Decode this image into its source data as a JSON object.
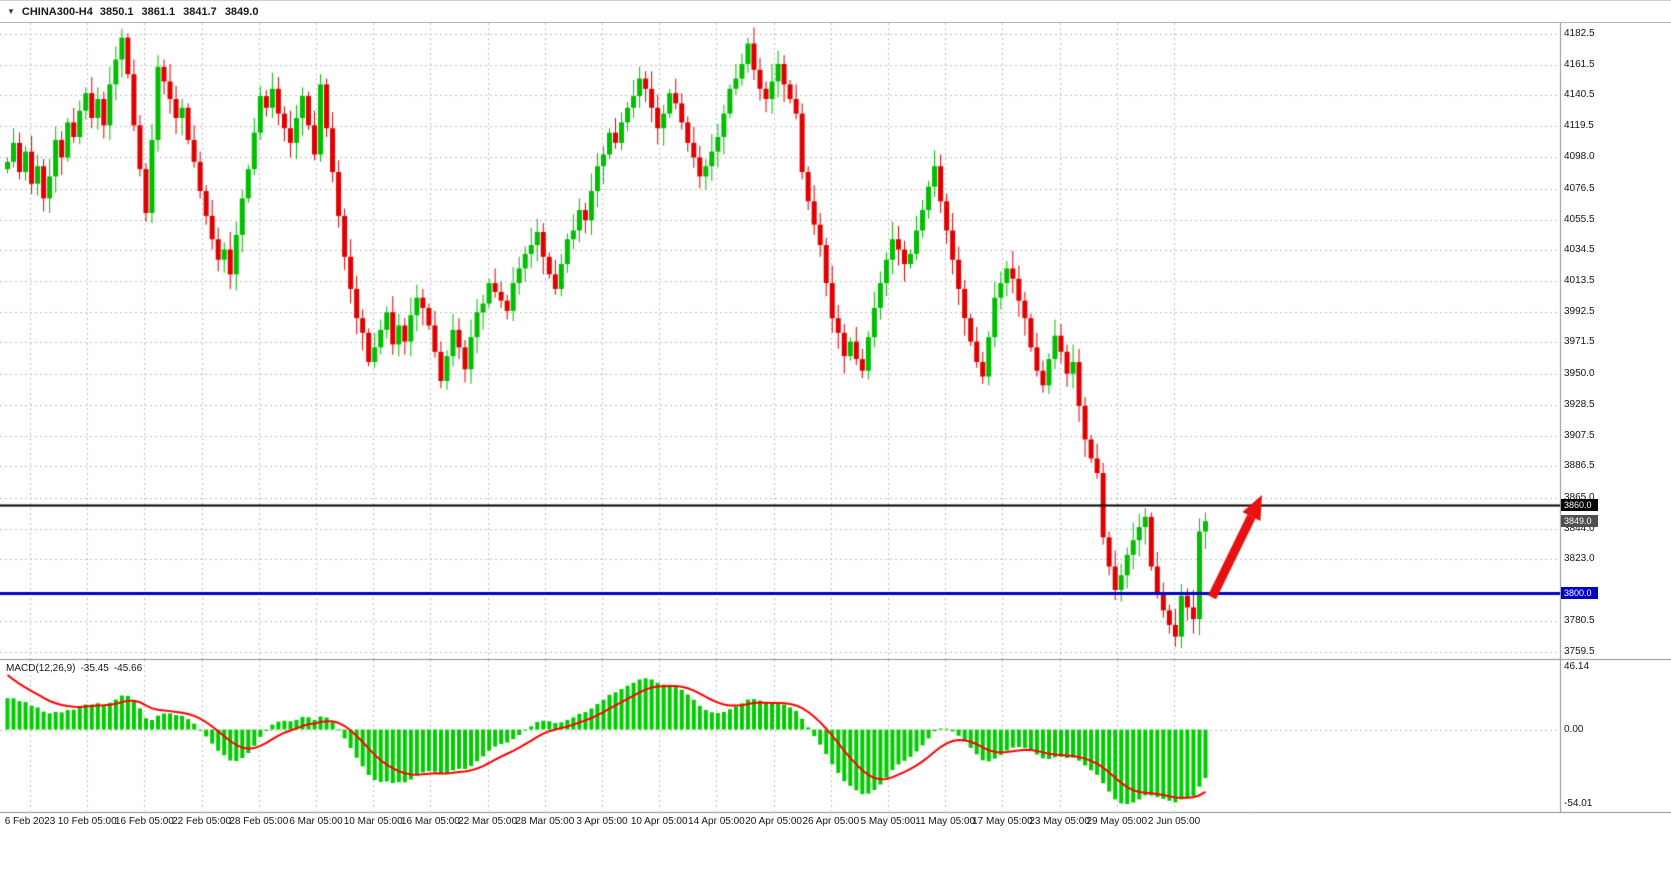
{
  "quote_bar": {
    "collapse_icon_glyph": "▼",
    "symbol": "CHINA300-H4",
    "open": "3850.1",
    "high": "3861.1",
    "low": "3841.7",
    "close": "3849.0"
  },
  "chart_data": {
    "type": "candlestick",
    "symbol": "CHINA300",
    "timeframe": "H4",
    "grid": true,
    "background": "#ffffff",
    "up_color": "#00BE00",
    "down_color": "#E00000",
    "price_top_tick": 4182.5,
    "price_bottom_tick": 3759.5,
    "price_axis_ticks": [
      "4182.5",
      "4161.5",
      "4140.5",
      "4119.5",
      "4098.0",
      "4076.5",
      "4055.5",
      "4034.5",
      "4013.5",
      "3992.5",
      "3971.5",
      "3950.0",
      "3928.5",
      "3907.5",
      "3886.5",
      "3865.0",
      "3844.0",
      "3823.0",
      "3780.5",
      "3759.5"
    ],
    "x_labels": [
      "6 Feb 2023",
      "10 Feb 05:00",
      "16 Feb 05:00",
      "22 Feb 05:00",
      "28 Feb 05:00",
      "6 Mar 05:00",
      "10 Mar 05:00",
      "16 Mar 05:00",
      "22 Mar 05:00",
      "28 Mar 05:00",
      "3 Apr 05:00",
      "10 Apr 05:00",
      "14 Apr 05:00",
      "20 Apr 05:00",
      "26 Apr 05:00",
      "5 May 05:00",
      "11 May 05:00",
      "17 May 05:00",
      "23 May 05:00",
      "29 May 05:00",
      "2 Jun 05:00"
    ],
    "first_open": 4090,
    "closes": [
      4095,
      4108,
      4088,
      4102,
      4080,
      4092,
      4070,
      4085,
      4110,
      4098,
      4122,
      4112,
      4130,
      4142,
      4125,
      4138,
      4120,
      4148,
      4165,
      4180,
      4155,
      4120,
      4090,
      4060,
      4110,
      4160,
      4150,
      4138,
      4125,
      4132,
      4110,
      4095,
      4075,
      4058,
      4042,
      4028,
      4035,
      4018,
      4045,
      4070,
      4090,
      4115,
      4140,
      4132,
      4145,
      4128,
      4118,
      4108,
      4125,
      4140,
      4120,
      4100,
      4148,
      4118,
      4088,
      4058,
      4030,
      4008,
      3988,
      3978,
      3958,
      3968,
      3980,
      3992,
      3970,
      3983,
      3972,
      3990,
      4002,
      3995,
      3983,
      3965,
      3945,
      3962,
      3980,
      3968,
      3953,
      3975,
      3992,
      3998,
      4012,
      4006,
      4000,
      3993,
      4012,
      4022,
      4032,
      4038,
      4047,
      4030,
      4018,
      4008,
      4025,
      4042,
      4048,
      4062,
      4055,
      4075,
      4092,
      4100,
      4115,
      4108,
      4122,
      4132,
      4140,
      4152,
      4145,
      4132,
      4118,
      4128,
      4142,
      4135,
      4122,
      4108,
      4098,
      4085,
      4092,
      4102,
      4112,
      4128,
      4145,
      4152,
      4162,
      4176,
      4158,
      4145,
      4138,
      4150,
      4162,
      4148,
      4138,
      4128,
      4088,
      4068,
      4052,
      4038,
      4012,
      3988,
      3978,
      3962,
      3972,
      3960,
      3952,
      3975,
      3995,
      4012,
      4028,
      4042,
      4035,
      4025,
      4032,
      4048,
      4062,
      4078,
      4092,
      4068,
      4048,
      4028,
      4008,
      3988,
      3972,
      3958,
      3948,
      3975,
      4002,
      4012,
      4022,
      4015,
      4000,
      3988,
      3968,
      3952,
      3942,
      3960,
      3976,
      3965,
      3950,
      3958,
      3928,
      3905,
      3892,
      3882,
      3838,
      3818,
      3802,
      3812,
      3826,
      3836,
      3845,
      3852,
      3818,
      3800,
      3788,
      3778,
      3770,
      3798,
      3790,
      3782,
      3842,
      3849
    ],
    "hlines": [
      {
        "price": 3860,
        "label": "3860.0",
        "color": "#000000",
        "width": 2
      },
      {
        "price": 3800,
        "label": "3800.0",
        "color": "#0000C8",
        "width": 3
      }
    ],
    "bid": {
      "price": 3849,
      "label": "3849.0",
      "badge_bg": "#4f4f4f"
    },
    "arrow": {
      "from_i": 200.5,
      "from_price": 3797,
      "to_i": 208.8,
      "to_price": 3867,
      "color": "#E81010"
    },
    "macd": {
      "label": "MACD(12,26,9)",
      "main_value": "-35.45",
      "signal_value": "-45.66",
      "axis_ticks": [
        "46.14",
        "0.00",
        "-54.01"
      ],
      "axis_max": 46.14,
      "axis_min": -54.01,
      "histogram_color": "#00CC00",
      "signal_color": "#FF0000"
    }
  }
}
